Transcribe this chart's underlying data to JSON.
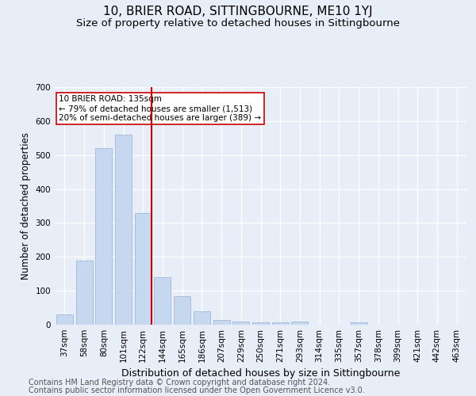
{
  "title": "10, BRIER ROAD, SITTINGBOURNE, ME10 1YJ",
  "subtitle": "Size of property relative to detached houses in Sittingbourne",
  "xlabel": "Distribution of detached houses by size in Sittingbourne",
  "ylabel": "Number of detached properties",
  "footer1": "Contains HM Land Registry data © Crown copyright and database right 2024.",
  "footer2": "Contains public sector information licensed under the Open Government Licence v3.0.",
  "categories": [
    "37sqm",
    "58sqm",
    "80sqm",
    "101sqm",
    "122sqm",
    "144sqm",
    "165sqm",
    "186sqm",
    "207sqm",
    "229sqm",
    "250sqm",
    "271sqm",
    "293sqm",
    "314sqm",
    "335sqm",
    "357sqm",
    "378sqm",
    "399sqm",
    "421sqm",
    "442sqm",
    "463sqm"
  ],
  "values": [
    30,
    190,
    520,
    560,
    330,
    140,
    85,
    40,
    13,
    10,
    8,
    8,
    10,
    0,
    0,
    6,
    0,
    0,
    0,
    0,
    0
  ],
  "bar_color": "#c5d8f0",
  "bar_edge_color": "#a0b8d8",
  "vline_color": "#cc0000",
  "vline_x_index": 4.425,
  "annotation_text": "10 BRIER ROAD: 135sqm\n← 79% of detached houses are smaller (1,513)\n20% of semi-detached houses are larger (389) →",
  "annotation_box_color": "#ffffff",
  "annotation_box_edge": "#cc0000",
  "ylim": [
    0,
    700
  ],
  "yticks": [
    0,
    100,
    200,
    300,
    400,
    500,
    600,
    700
  ],
  "bg_color": "#e8eef7",
  "plot_bg_color": "#e8eef7",
  "grid_color": "#ffffff",
  "title_fontsize": 11,
  "subtitle_fontsize": 9.5,
  "xlabel_fontsize": 9,
  "ylabel_fontsize": 8.5,
  "tick_fontsize": 7.5,
  "footer_fontsize": 7,
  "annot_fontsize": 7.5
}
